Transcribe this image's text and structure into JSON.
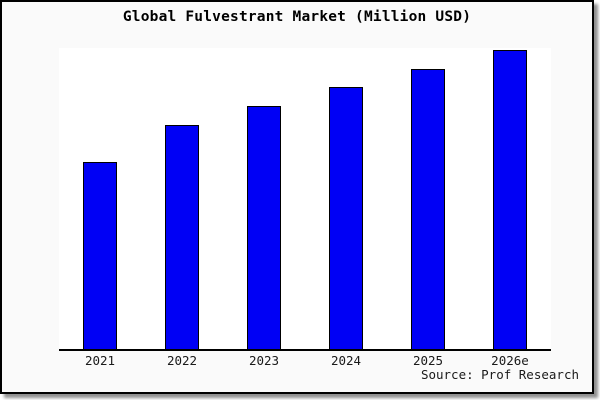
{
  "header": {
    "title": "Global Fulvestrant Market (Million USD)"
  },
  "footer": {
    "source": "Source: Prof Research"
  },
  "chart_data": {
    "type": "bar",
    "title": "Global Fulvestrant Market (Million USD)",
    "categories": [
      "2021",
      "2022",
      "2023",
      "2024",
      "2025",
      "2026e"
    ],
    "values": [
      62.7,
      75.0,
      81.3,
      87.7,
      93.7,
      100.0
    ],
    "note": "Chart shows no y-axis scale or data labels; values estimated from bar heights normalized to 2026e = 100",
    "xlabel": "",
    "ylabel": "",
    "ylim": [
      0,
      100
    ],
    "grid": false,
    "legend": "none",
    "bar_color": "#0000f5",
    "bar_border_color": "#000000",
    "plot_background": "#ffffff",
    "canvas_background": "#fafafa",
    "frame_border_color": "#000000",
    "source": "Source: Prof Research"
  }
}
